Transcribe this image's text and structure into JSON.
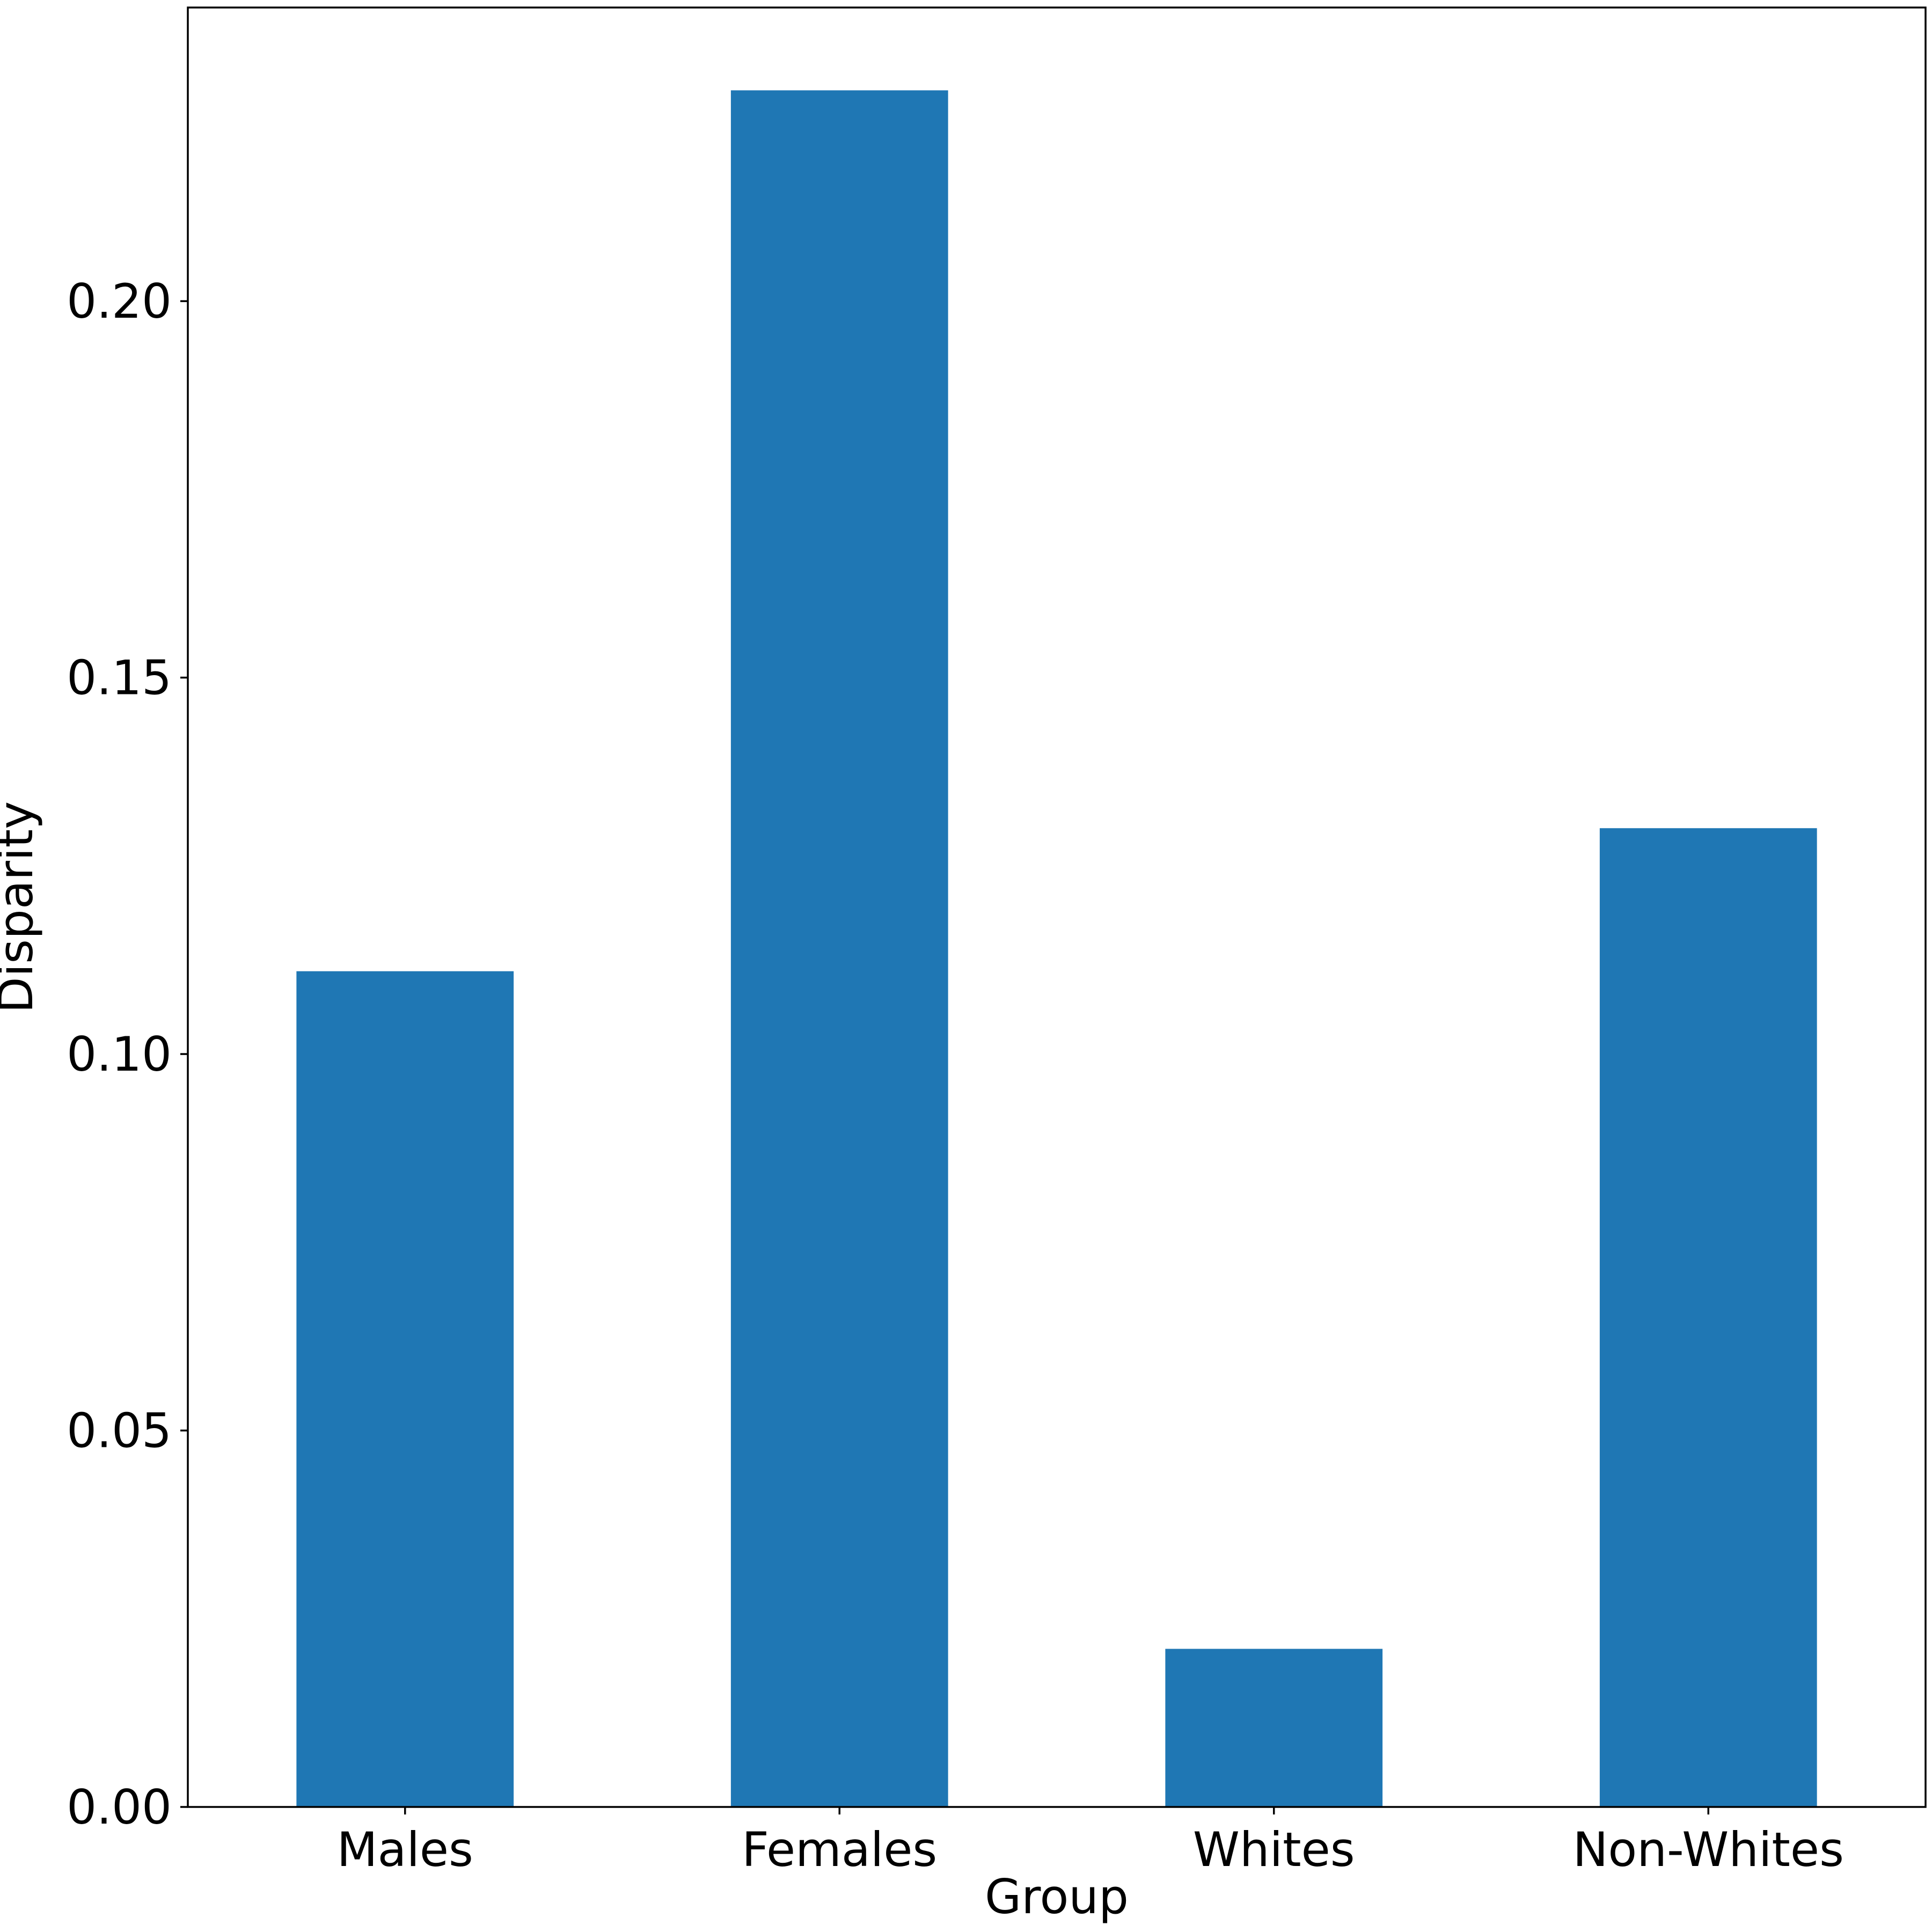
{
  "chart_data": {
    "type": "bar",
    "title": "",
    "xlabel": "Group",
    "ylabel": "Disparity",
    "categories": [
      "Males",
      "Females",
      "Whites",
      "Non-Whites"
    ],
    "values": [
      0.111,
      0.228,
      0.021,
      0.13
    ],
    "ylim": [
      0,
      0.239
    ],
    "yticks": [
      0.0,
      0.05,
      0.1,
      0.15,
      0.2
    ],
    "ytick_labels": [
      "0.00",
      "0.05",
      "0.10",
      "0.15",
      "0.20"
    ],
    "bar_color": "#1f77b4",
    "grid": false,
    "legend": "none"
  }
}
